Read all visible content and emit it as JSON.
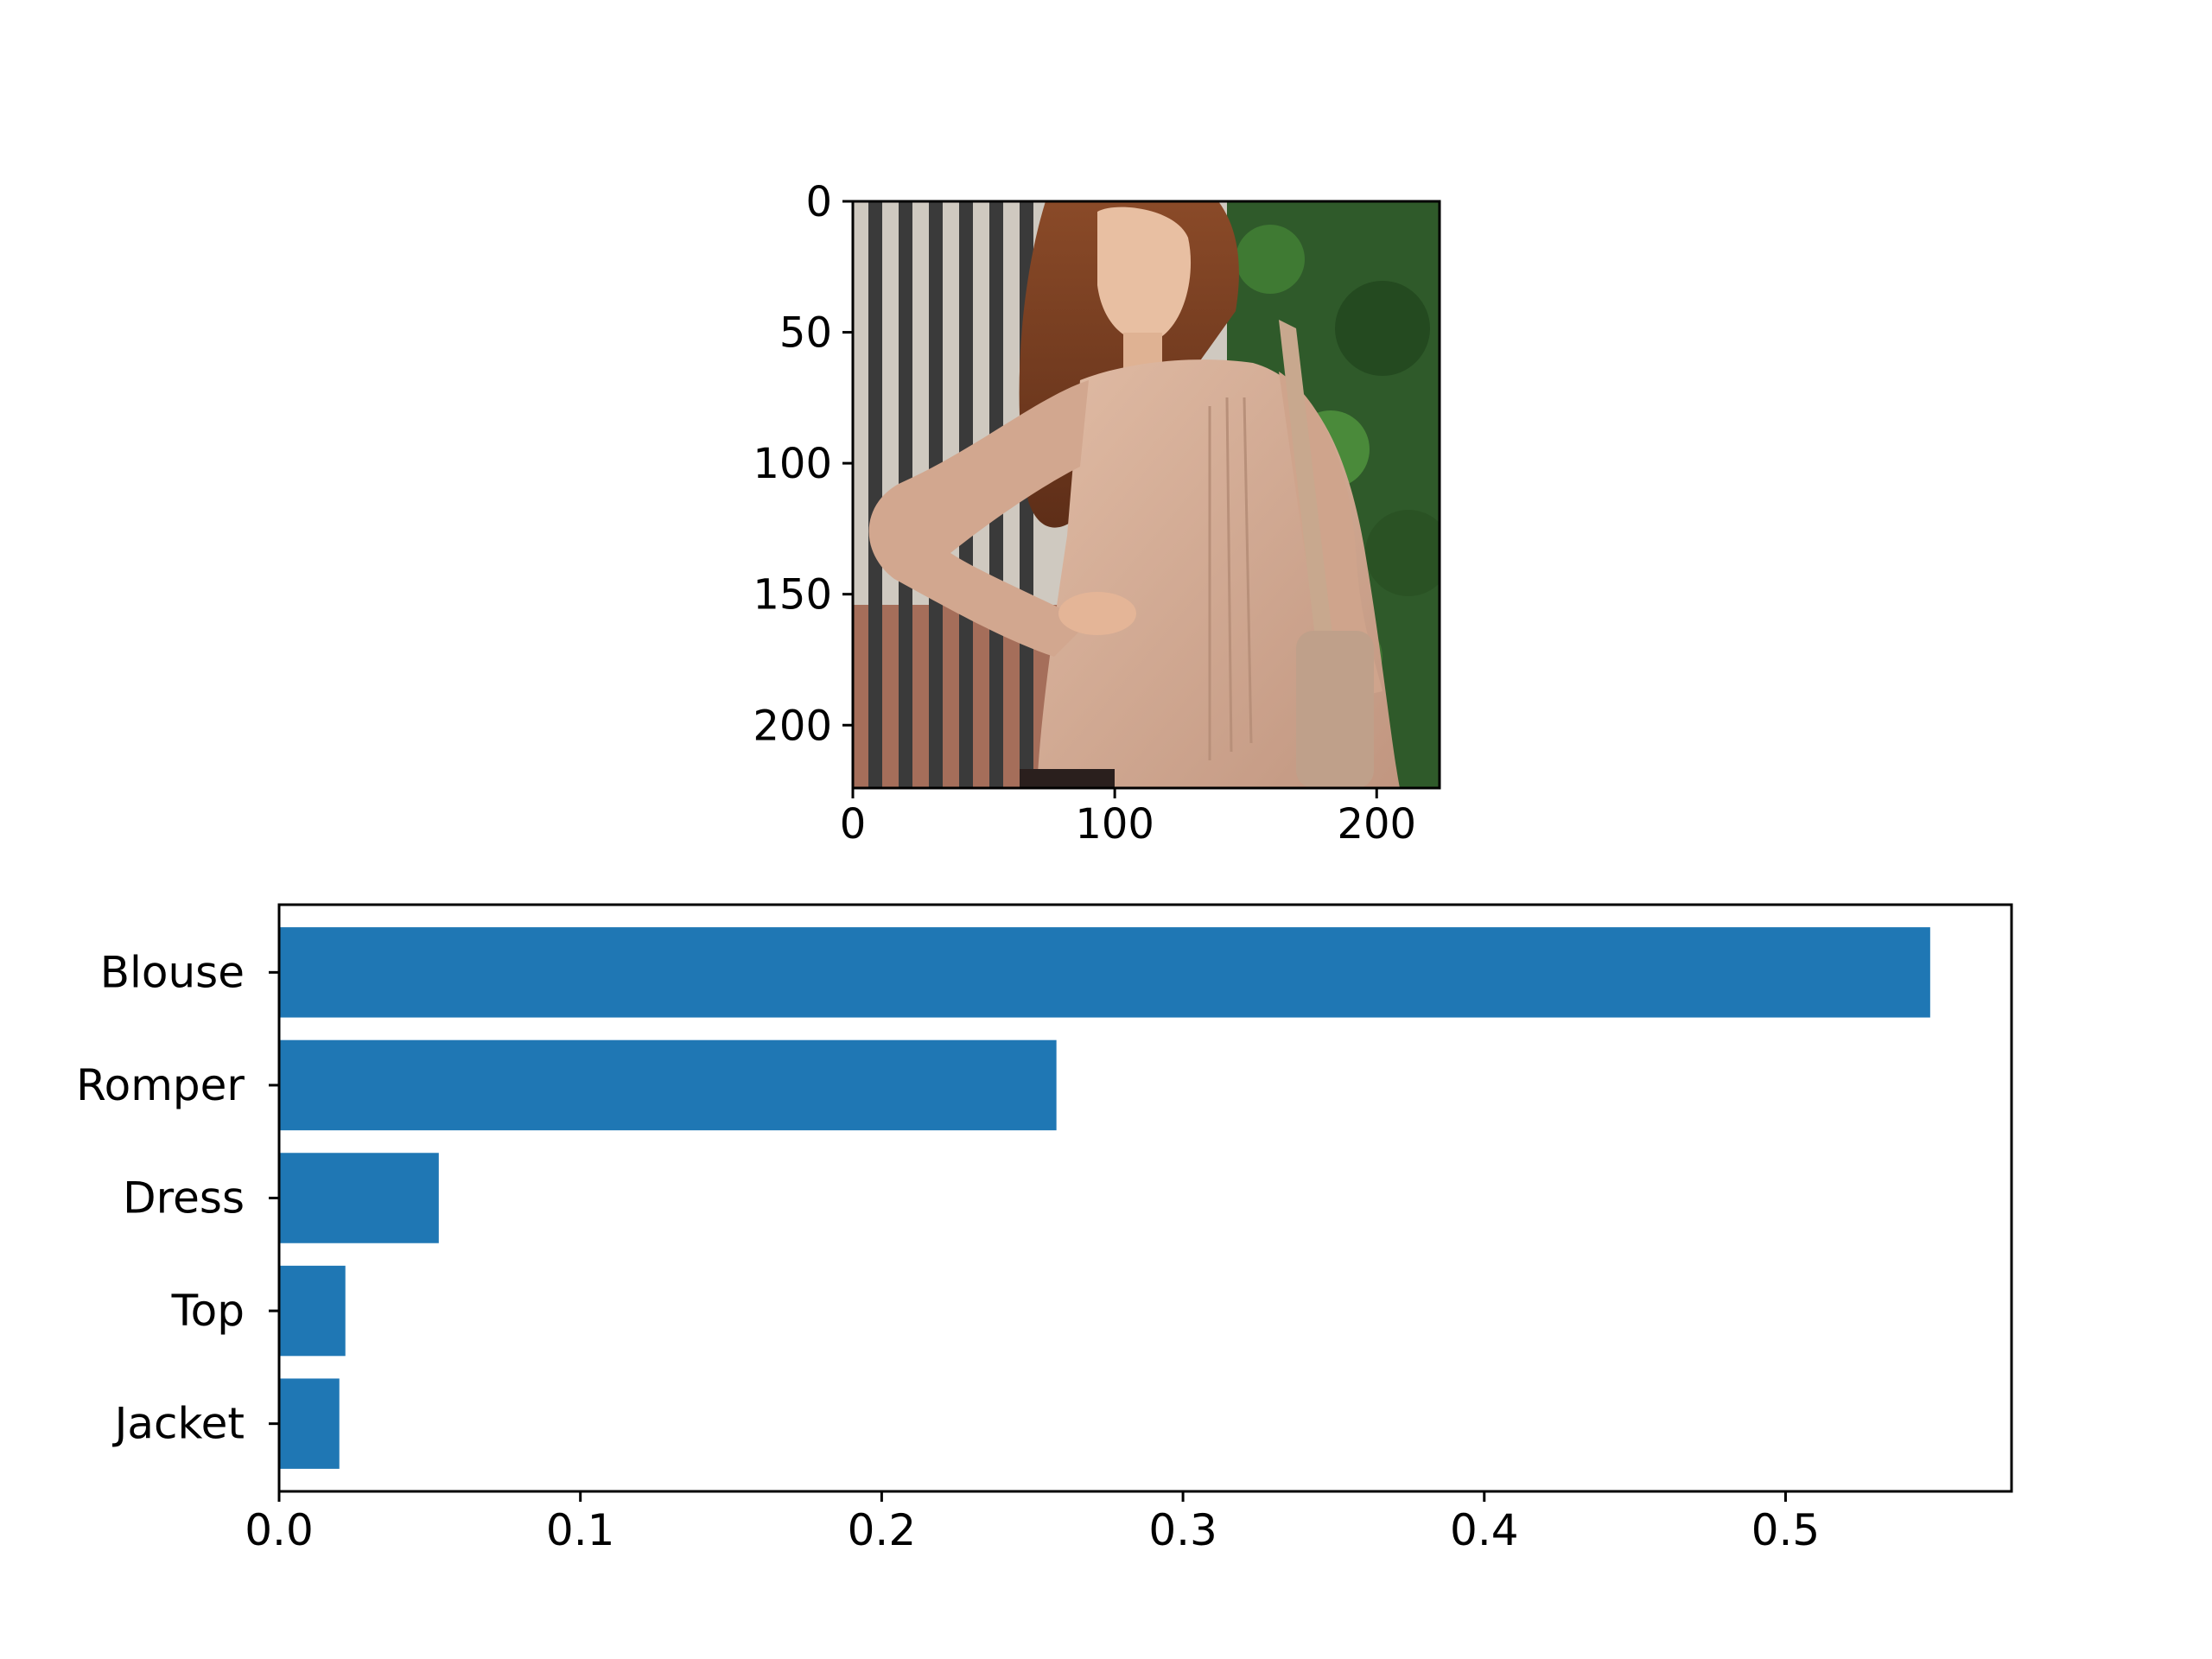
{
  "chart_data": [
    {
      "type": "image",
      "xlim": [
        0,
        224
      ],
      "ylim": [
        224,
        0
      ],
      "x_ticks": [
        0,
        100,
        200
      ],
      "y_ticks": [
        0,
        50,
        100,
        150,
        200
      ],
      "x_tick_labels": [
        "0",
        "100",
        "200"
      ],
      "y_tick_labels": [
        "0",
        "50",
        "100",
        "150",
        "200"
      ],
      "image_description": "photo of a woman with long brown hair wearing a beige blouse, standing in front of a black iron gate and green hedge",
      "colors": {
        "gate_bars": "#3a3a3a",
        "background_left": "#cfc9c0",
        "hedge": "#2f5a2a",
        "hair": "#7a3f22",
        "blouse": "#d5ab93",
        "skin": "#e8bfa2"
      }
    },
    {
      "type": "bar",
      "orientation": "horizontal",
      "categories": [
        "Blouse",
        "Romper",
        "Dress",
        "Top",
        "Jacket"
      ],
      "values": [
        0.548,
        0.258,
        0.053,
        0.022,
        0.02
      ],
      "xlim": [
        0,
        0.575
      ],
      "x_ticks": [
        0.0,
        0.1,
        0.2,
        0.3,
        0.4,
        0.5
      ],
      "x_tick_labels": [
        "0.0",
        "0.1",
        "0.2",
        "0.3",
        "0.4",
        "0.5"
      ],
      "bar_color": "#1f77b4",
      "title": "",
      "xlabel": "",
      "ylabel": "",
      "grid": false,
      "legend": "none"
    }
  ]
}
